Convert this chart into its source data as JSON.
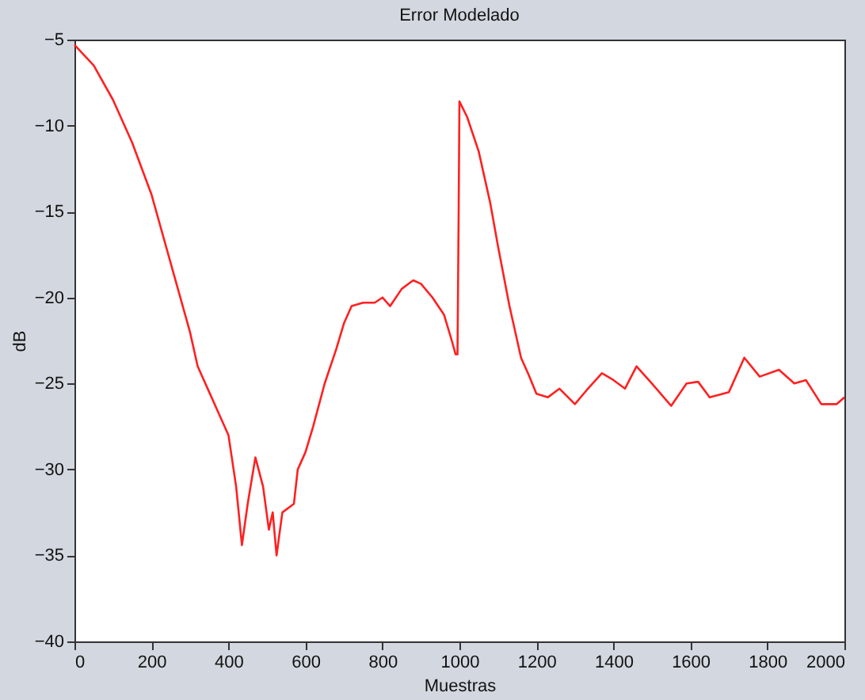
{
  "chart_data": {
    "type": "line",
    "title": "Error Modelado",
    "xlabel": "Muestras",
    "ylabel": "dB",
    "xlim": [
      0,
      2000
    ],
    "xticks": [
      0,
      200,
      400,
      600,
      800,
      1000,
      1200,
      1400,
      1600,
      1800,
      2000
    ],
    "ylim": [
      -40,
      -5
    ],
    "yticks": [
      -40,
      -35,
      -30,
      -25,
      -20,
      -15,
      -10,
      -5
    ],
    "grid": false,
    "marker": "none",
    "line_style": "solid",
    "series": [
      {
        "color": "#ff2020",
        "x": [
          0,
          50,
          100,
          150,
          200,
          250,
          300,
          320,
          350,
          380,
          400,
          420,
          435,
          450,
          470,
          490,
          505,
          515,
          525,
          540,
          570,
          580,
          600,
          620,
          650,
          680,
          700,
          720,
          750,
          780,
          800,
          820,
          850,
          880,
          900,
          930,
          960,
          980,
          990,
          995,
          998,
          1000,
          1020,
          1050,
          1080,
          1100,
          1130,
          1160,
          1180,
          1200,
          1230,
          1260,
          1300,
          1330,
          1370,
          1400,
          1430,
          1460,
          1500,
          1550,
          1590,
          1620,
          1650,
          1700,
          1740,
          1780,
          1830,
          1870,
          1900,
          1920,
          1940,
          1980,
          2000
        ],
        "values": [
          -5.3,
          -6.5,
          -8.5,
          -11,
          -14,
          -18,
          -22,
          -24,
          -25.5,
          -27,
          -28,
          -31,
          -34.4,
          -32,
          -29.3,
          -31,
          -33.5,
          -32.5,
          -35,
          -32.5,
          -32,
          -30,
          -29,
          -27.5,
          -25,
          -23,
          -21.5,
          -20.5,
          -20.3,
          -20.3,
          -20,
          -20.5,
          -19.5,
          -19,
          -19.2,
          -20,
          -21,
          -22.5,
          -23.3,
          -23.3,
          -15,
          -8.6,
          -9.5,
          -11.5,
          -14.5,
          -17,
          -20.5,
          -23.5,
          -24.5,
          -25.6,
          -25.8,
          -25.3,
          -26.2,
          -25.4,
          -24.4,
          -24.8,
          -25.3,
          -24,
          -25,
          -26.3,
          -25,
          -24.9,
          -25.8,
          -25.5,
          -23.5,
          -24.6,
          -24.2,
          -25,
          -24.8,
          -25.5,
          -26.2,
          -26.2,
          -25.8
        ]
      }
    ]
  }
}
